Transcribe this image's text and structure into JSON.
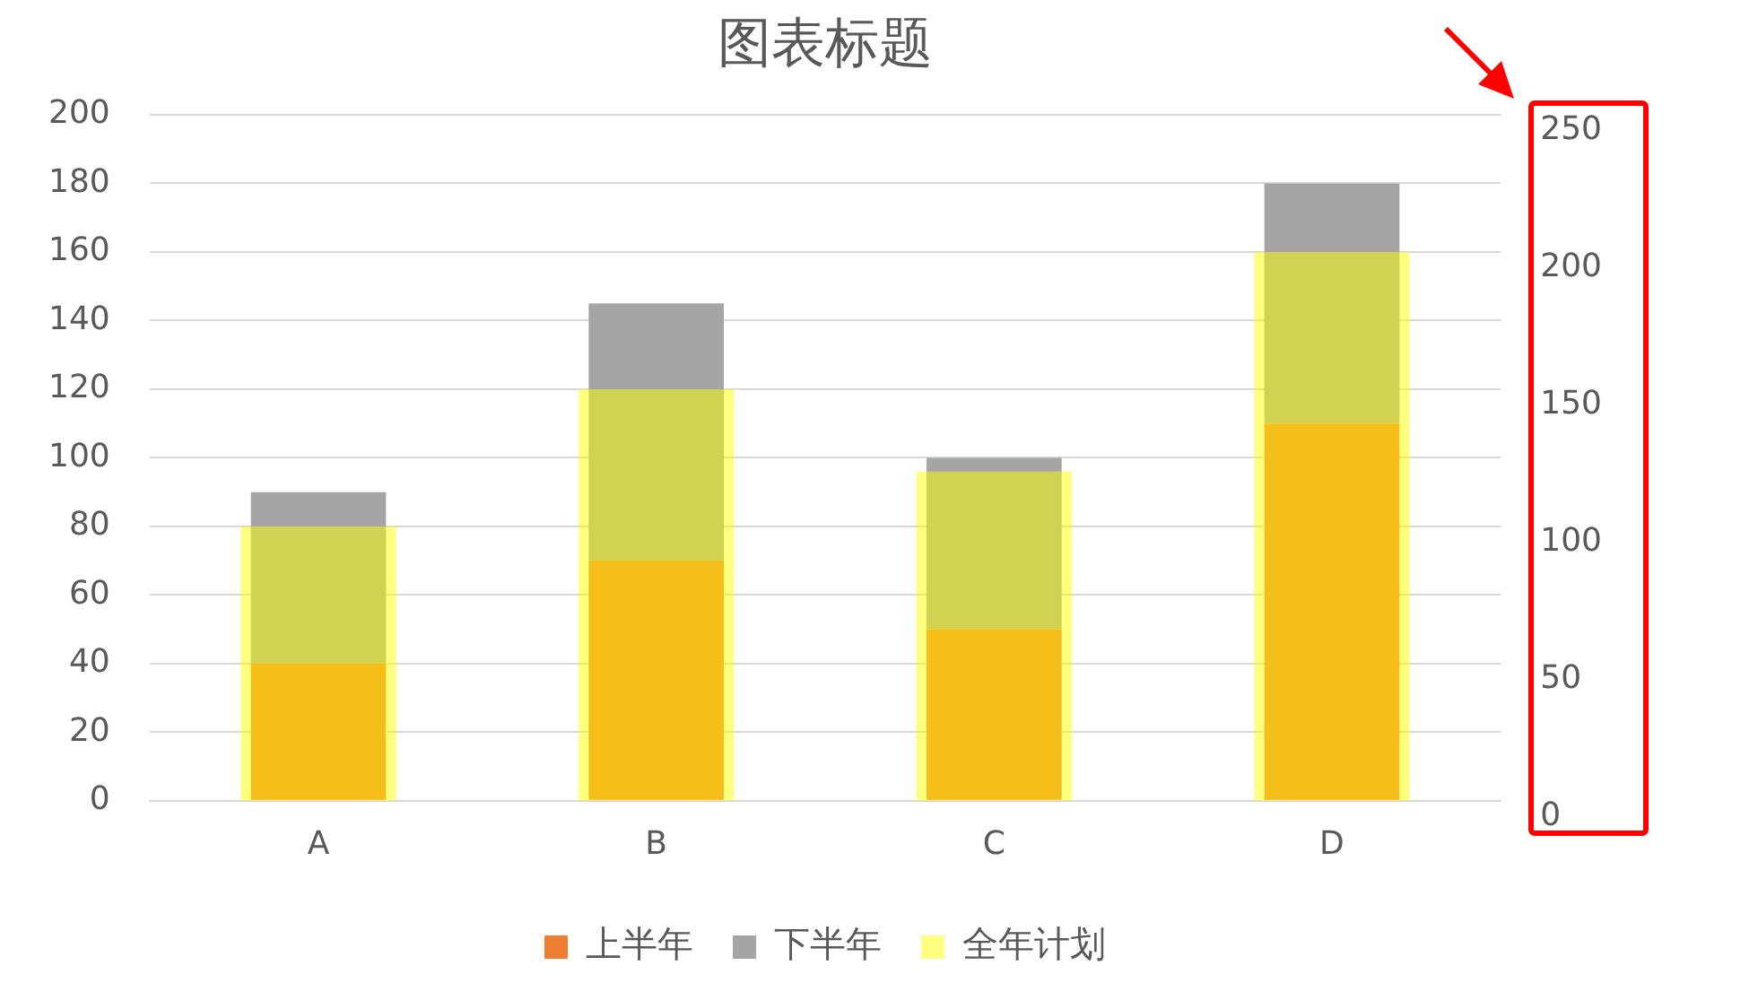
{
  "chart_data": {
    "type": "bar",
    "title": "图表标题",
    "categories": [
      "A",
      "B",
      "C",
      "D"
    ],
    "stacked": true,
    "series": [
      {
        "name": "上半年",
        "color": "#ed7d31",
        "values": [
          40,
          70,
          50,
          110
        ]
      },
      {
        "name": "下半年",
        "color": "#a5a5a5",
        "values": [
          50,
          75,
          50,
          70
        ]
      },
      {
        "name": "全年计划",
        "color": "#ffff00",
        "axis": "y2",
        "values": [
          100,
          150,
          120,
          200
        ]
      }
    ],
    "ylim": [
      0,
      200
    ],
    "yticks": [
      0,
      20,
      40,
      60,
      80,
      100,
      120,
      140,
      160,
      180,
      200
    ],
    "y2lim": [
      0,
      250
    ],
    "y2ticks": [
      0,
      50,
      100,
      150,
      200,
      250
    ],
    "grid": "y",
    "legend": "bottom"
  }
}
